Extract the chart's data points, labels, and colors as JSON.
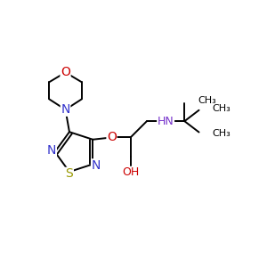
{
  "bg_color": "#ffffff",
  "bond_color": "#000000",
  "atom_colors": {
    "N": "#3333cc",
    "O": "#cc0000",
    "S": "#999900",
    "NH": "#7733cc",
    "OH": "#cc0000",
    "C": "#000000"
  },
  "bond_width": 1.4,
  "font_size": 9,
  "xlim": [
    0,
    10
  ],
  "ylim": [
    0,
    10
  ]
}
